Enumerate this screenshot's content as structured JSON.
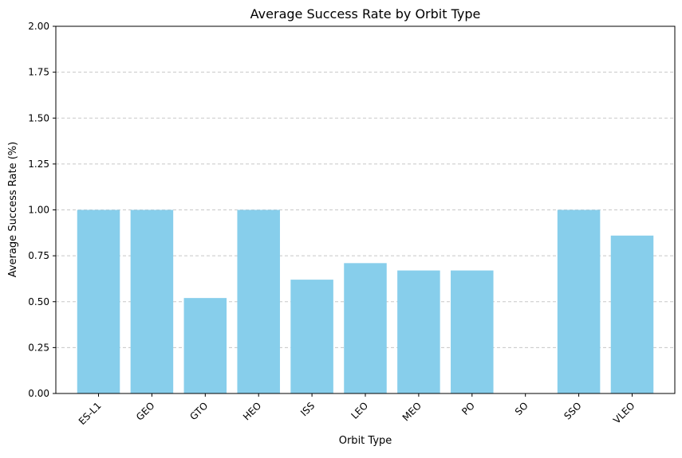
{
  "chart_data": {
    "type": "bar",
    "title": "Average Success Rate by Orbit Type",
    "xlabel": "Orbit Type",
    "ylabel": "Average Success Rate (%)",
    "categories": [
      "ES-L1",
      "GEO",
      "GTO",
      "HEO",
      "ISS",
      "LEO",
      "MEO",
      "PO",
      "SO",
      "SSO",
      "VLEO"
    ],
    "values": [
      1.0,
      1.0,
      0.52,
      1.0,
      0.62,
      0.71,
      0.67,
      0.67,
      0.0,
      1.0,
      0.86
    ],
    "ylim": [
      0,
      2.0
    ],
    "yticks": [
      "0.00",
      "0.25",
      "0.50",
      "0.75",
      "1.00",
      "1.25",
      "1.50",
      "1.75",
      "2.00"
    ],
    "grid": "y-dashed",
    "bar_color": "#87ceeb",
    "grid_color": "#c8c8c8"
  }
}
